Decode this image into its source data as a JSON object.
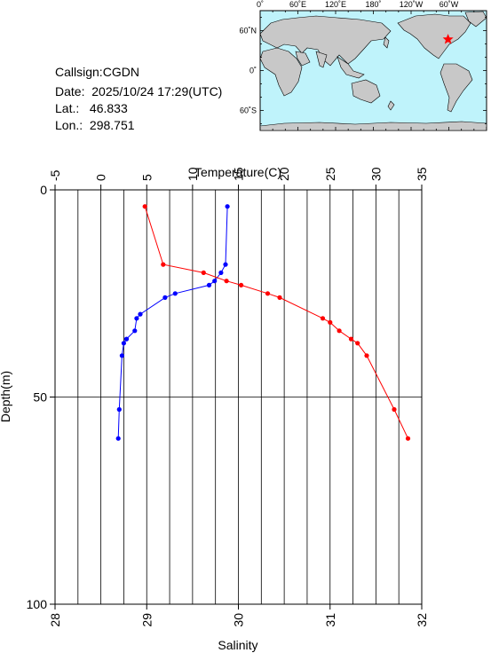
{
  "station": {
    "callsign_label": "Callsign:",
    "callsign": "CGDN",
    "date_label": "Date:",
    "date": "2025/10/24 17:29(UTC)",
    "lat_label": "Lat.:",
    "lat": "46.833",
    "lon_label": "Lon.:",
    "lon": "298.751"
  },
  "map": {
    "lon_ticks": [
      "0˚",
      "60˚E",
      "120˚E",
      "180˚",
      "120˚W",
      "60˚W"
    ],
    "lat_ticks": [
      "60˚N",
      "0˚",
      "60˚S"
    ],
    "ocean_color": "#bff3fb",
    "land_color": "#c8c8c8",
    "marker_color": "#ff0000",
    "marker_shape": "star",
    "position": {
      "lat": 46.833,
      "lon": 298.751
    }
  },
  "chart_data": {
    "type": "line",
    "title": "",
    "top_axis": {
      "label": "Temperature(C)",
      "range": [
        -5,
        35
      ],
      "ticks": [
        "-5",
        "0",
        "5",
        "10",
        "15",
        "20",
        "25",
        "30",
        "35"
      ]
    },
    "bottom_axis": {
      "label": "Salinity",
      "range": [
        28,
        32
      ],
      "ticks": [
        "28",
        "29",
        "30",
        "31",
        "32"
      ]
    },
    "y_axis": {
      "label": "Depth(m)",
      "range": [
        0,
        100
      ],
      "inverted": true,
      "ticks": [
        "0",
        "50",
        "100"
      ]
    },
    "grid": true,
    "series": [
      {
        "name": "",
        "quantity": "temperature",
        "color": "#0000ff",
        "points": [
          {
            "value": 13.8,
            "depth": 4
          },
          {
            "value": 13.6,
            "depth": 18
          },
          {
            "value": 13.1,
            "depth": 20
          },
          {
            "value": 12.4,
            "depth": 22
          },
          {
            "value": 11.8,
            "depth": 23
          },
          {
            "value": 8.1,
            "depth": 25
          },
          {
            "value": 7.0,
            "depth": 26
          },
          {
            "value": 4.3,
            "depth": 30
          },
          {
            "value": 3.9,
            "depth": 31
          },
          {
            "value": 3.7,
            "depth": 34
          },
          {
            "value": 2.8,
            "depth": 36
          },
          {
            "value": 2.5,
            "depth": 37
          },
          {
            "value": 2.3,
            "depth": 40
          },
          {
            "value": 2.0,
            "depth": 53
          },
          {
            "value": 1.9,
            "depth": 60
          }
        ]
      },
      {
        "name": "",
        "quantity": "salinity",
        "color": "#ff0000",
        "points": [
          {
            "value": 28.98,
            "depth": 4
          },
          {
            "value": 29.18,
            "depth": 18
          },
          {
            "value": 29.62,
            "depth": 20
          },
          {
            "value": 29.87,
            "depth": 22
          },
          {
            "value": 30.03,
            "depth": 23
          },
          {
            "value": 30.32,
            "depth": 25
          },
          {
            "value": 30.45,
            "depth": 26
          },
          {
            "value": 30.92,
            "depth": 31
          },
          {
            "value": 31.0,
            "depth": 32
          },
          {
            "value": 31.1,
            "depth": 34
          },
          {
            "value": 31.23,
            "depth": 36
          },
          {
            "value": 31.3,
            "depth": 37
          },
          {
            "value": 31.4,
            "depth": 40
          },
          {
            "value": 31.7,
            "depth": 53
          },
          {
            "value": 31.85,
            "depth": 60
          }
        ]
      }
    ]
  }
}
